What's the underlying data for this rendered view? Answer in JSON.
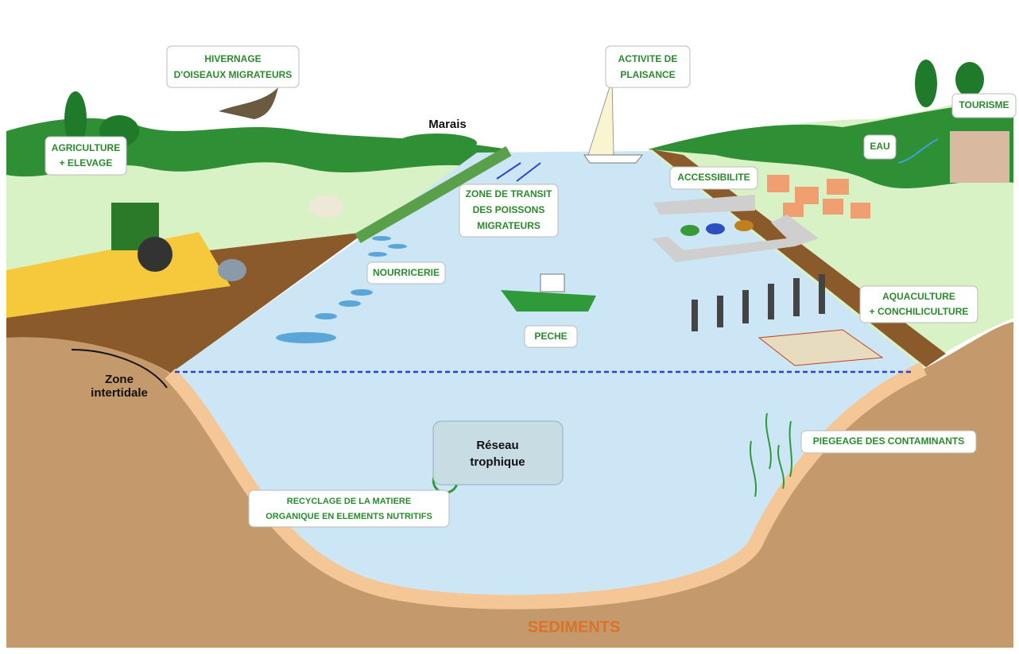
{
  "labels": [
    {
      "lines": [
        "HIVERNAGE",
        "D'OISEAUX MIGRATEURS"
      ]
    },
    {
      "lines": [
        "ACTIVITE DE",
        "PLAISANCE"
      ]
    },
    {
      "lines": [
        "TOURISME"
      ]
    },
    {
      "lines": [
        "AGRICULTURE",
        "+ ELEVAGE"
      ]
    },
    {
      "lines": [
        "Marais"
      ]
    },
    {
      "lines": [
        "EAU"
      ]
    },
    {
      "lines": [
        "ACCESSIBILITE"
      ]
    },
    {
      "lines": [
        "ZONE DE TRANSIT",
        "DES POISSONS",
        "MIGRATEURS"
      ]
    },
    {
      "lines": [
        "NOURRICERIE"
      ]
    },
    {
      "lines": [
        "AQUACULTURE",
        "+ CONCHILICULTURE"
      ]
    },
    {
      "lines": [
        "PECHE"
      ]
    },
    {
      "lines": [
        "Zone",
        "intertidale"
      ]
    },
    {
      "lines": [
        "Réseau",
        "trophique"
      ]
    },
    {
      "lines": [
        "PIEGEAGE DES CONTAMINANTS"
      ]
    },
    {
      "lines": [
        "RECYCLAGE DE LA MATIERE",
        "ORGANIQUE EN ELEMENTS NUTRITIFS"
      ]
    },
    {
      "lines": [
        "SEDIMENTS"
      ]
    }
  ]
}
